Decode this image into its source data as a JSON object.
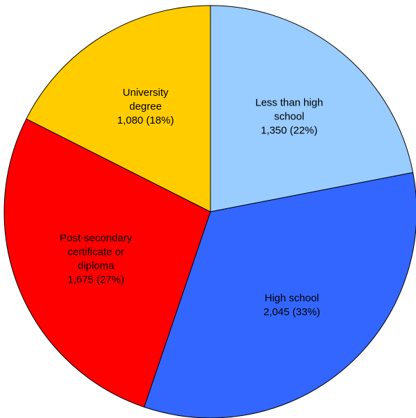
{
  "chart_data": {
    "type": "pie",
    "title": "",
    "slices": [
      {
        "label_lines": [
          "Less than high",
          "school"
        ],
        "value_text": "1,350 (22%)",
        "value": 1350,
        "percent": 22,
        "color": "#99CCFF"
      },
      {
        "label_lines": [
          "High school"
        ],
        "value_text": "2,045 (33%)",
        "value": 2045,
        "percent": 33,
        "color": "#3366FF"
      },
      {
        "label_lines": [
          "Post-secondary",
          "certificate or",
          "diploma"
        ],
        "value_text": "1,675 (27%)",
        "value": 1675,
        "percent": 27,
        "color": "#FF0000"
      },
      {
        "label_lines": [
          "University",
          "degree"
        ],
        "value_text": "1,080 (18%)",
        "value": 1080,
        "percent": 18,
        "color": "#FFCC00"
      }
    ]
  }
}
